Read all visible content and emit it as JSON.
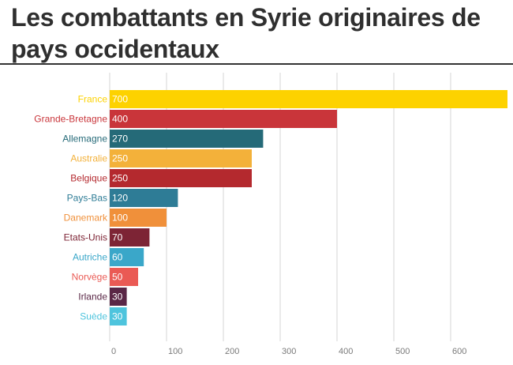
{
  "chart_data": {
    "type": "bar",
    "orientation": "horizontal",
    "title": "Les combattants en Syrie originaires de pays occidentaux",
    "categories": [
      "France",
      "Grande-Bretagne",
      "Allemagne",
      "Australie",
      "Belgique",
      "Pays-Bas",
      "Danemark",
      "Etats-Unis",
      "Autriche",
      "Norvège",
      "Irlande",
      "Suède"
    ],
    "values": [
      700,
      400,
      270,
      250,
      250,
      120,
      100,
      70,
      60,
      50,
      30,
      30
    ],
    "colors": [
      "#fdd200",
      "#c9353a",
      "#256a78",
      "#f3b13a",
      "#b4292e",
      "#2e7c96",
      "#f0903a",
      "#7d2435",
      "#3aa7c9",
      "#ea5a54",
      "#5a2746",
      "#4ec4dd"
    ],
    "xticks": [
      0,
      100,
      200,
      300,
      400,
      500,
      600
    ],
    "xlim": [
      0,
      700
    ],
    "grid": true
  }
}
